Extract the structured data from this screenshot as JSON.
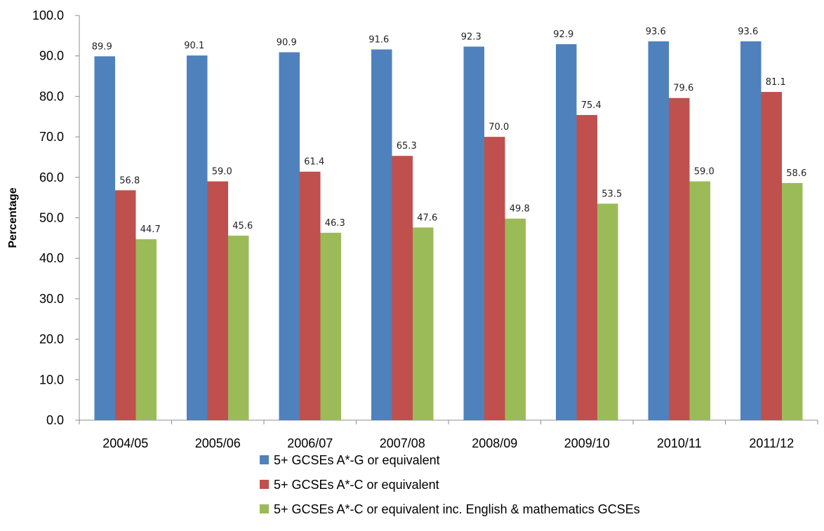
{
  "chart_data": {
    "type": "bar",
    "title": "",
    "xlabel": "",
    "ylabel": "Percentage",
    "ylim": [
      0,
      100
    ],
    "yticks": [
      "0.0",
      "10.0",
      "20.0",
      "30.0",
      "40.0",
      "50.0",
      "60.0",
      "70.0",
      "80.0",
      "90.0",
      "100.0"
    ],
    "grid": false,
    "legend_position": "bottom",
    "categories": [
      "2004/05",
      "2005/06",
      "2006/07",
      "2007/08",
      "2008/09",
      "2009/10",
      "2010/11",
      "2011/12"
    ],
    "series": [
      {
        "name": "5+ GCSEs A*-G or equivalent",
        "color": "#4F81BD",
        "values": [
          89.9,
          90.1,
          90.9,
          91.6,
          92.3,
          92.9,
          93.6,
          93.6
        ],
        "labels": [
          "89.9",
          "90.1",
          "90.9",
          "91.6",
          "92.3",
          "92.9",
          "93.6",
          "93.6"
        ]
      },
      {
        "name": "5+ GCSEs A*-C or equivalent",
        "color": "#C0504D",
        "values": [
          56.8,
          59.0,
          61.4,
          65.3,
          70.0,
          75.4,
          79.6,
          81.1
        ],
        "labels": [
          "56.8",
          "59.0",
          "61.4",
          "65.3",
          "70.0",
          "75.4",
          "79.6",
          "81.1"
        ]
      },
      {
        "name": "5+ GCSEs A*-C or equivalent inc. English & mathematics GCSEs",
        "color": "#9BBB59",
        "values": [
          44.7,
          45.6,
          46.3,
          47.6,
          49.8,
          53.5,
          59.0,
          58.6
        ],
        "labels": [
          "44.7",
          "45.6",
          "46.3",
          "47.6",
          "49.8",
          "53.5",
          "59.0",
          "58.6"
        ]
      }
    ]
  }
}
